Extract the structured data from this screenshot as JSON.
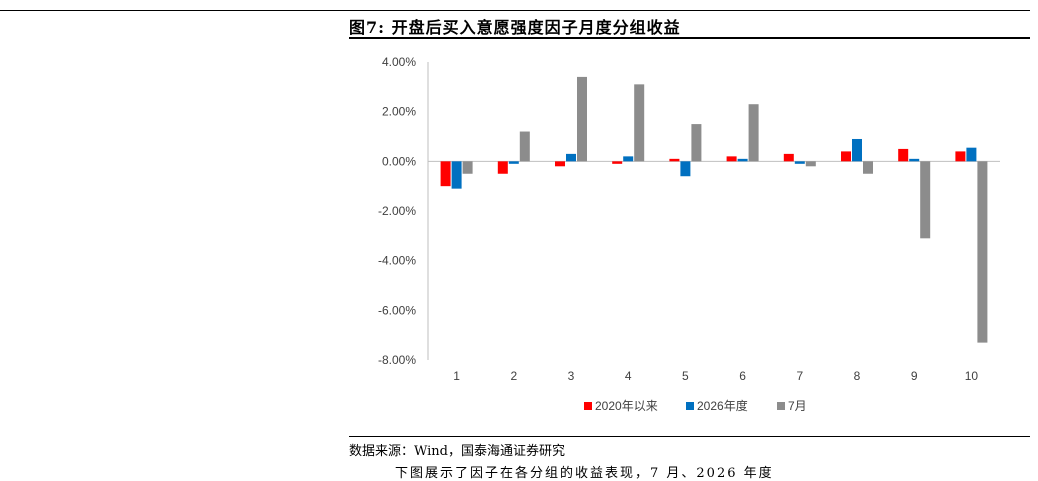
{
  "figure": {
    "title": "图7:  开盘后买入意愿强度因子月度分组收益",
    "source": "数据来源：Wind，国泰海通证券研究",
    "body_text": "下图展示了因子在各分组的收益表现，7 月、2026 年度"
  },
  "colors": {
    "s1": "#ff0000",
    "s2": "#0070c0",
    "s3": "#8c8c8c",
    "axis": "#bfbfbf"
  },
  "chart_data": {
    "type": "bar",
    "title": "",
    "xlabel": "",
    "ylabel": "",
    "categories": [
      "1",
      "2",
      "3",
      "4",
      "5",
      "6",
      "7",
      "8",
      "9",
      "10"
    ],
    "series": [
      {
        "name": "2020年以来",
        "values": [
          -0.01,
          -0.005,
          -0.002,
          -0.001,
          0.001,
          0.002,
          0.003,
          0.004,
          0.005,
          0.004
        ]
      },
      {
        "name": "2026年度",
        "values": [
          -0.011,
          -0.001,
          0.003,
          0.002,
          -0.006,
          0.001,
          -0.001,
          0.009,
          0.001,
          0.0055
        ]
      },
      {
        "name": "7月",
        "values": [
          -0.005,
          0.012,
          0.034,
          0.031,
          0.015,
          0.023,
          -0.002,
          -0.005,
          -0.031,
          -0.073
        ]
      }
    ],
    "ylim": [
      -0.08,
      0.04
    ],
    "yticks": [
      "4.00%",
      "2.00%",
      "0.00%",
      "-2.00%",
      "-4.00%",
      "-6.00%",
      "-8.00%"
    ],
    "ytick_values": [
      0.04,
      0.02,
      0,
      -0.02,
      -0.04,
      -0.06,
      -0.08
    ],
    "legend_position": "bottom",
    "grid": false
  }
}
